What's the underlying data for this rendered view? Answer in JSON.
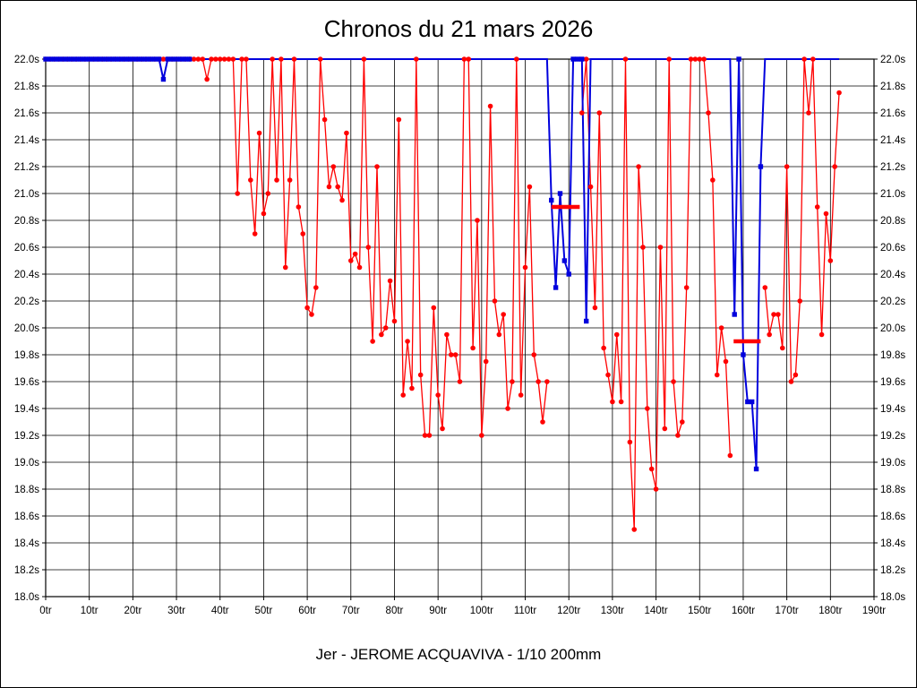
{
  "title": "Chronos du 21 mars 2026",
  "caption": "Jer - JEROME ACQUAVIVA - 1/10 200mm",
  "chart_data": {
    "type": "line",
    "title": "Chronos du 21 mars 2026",
    "subtitle": "Jer - JEROME ACQUAVIVA - 1/10 200mm",
    "grid": true,
    "background": "#ffffff",
    "grid_color": "#000000",
    "x_axis": {
      "unit": "tr",
      "min": 0,
      "max": 190,
      "tick_step": 10,
      "tick_labels": [
        "0tr",
        "10tr",
        "20tr",
        "30tr",
        "40tr",
        "50tr",
        "60tr",
        "70tr",
        "80tr",
        "90tr",
        "100tr",
        "110tr",
        "120tr",
        "130tr",
        "140tr",
        "150tr",
        "160tr",
        "170tr",
        "180tr",
        "190tr"
      ]
    },
    "y_axis": {
      "unit": "s",
      "min": 18.0,
      "max": 22.0,
      "tick_step": 0.2,
      "tick_labels": [
        "22.0s",
        "21.8s",
        "21.6s",
        "21.4s",
        "21.2s",
        "21.0s",
        "20.8s",
        "20.6s",
        "20.4s",
        "20.2s",
        "20.0s",
        "19.8s",
        "19.6s",
        "19.4s",
        "19.2s",
        "19.0s",
        "18.8s",
        "18.6s",
        "18.4s",
        "18.2s",
        "18.0s"
      ]
    },
    "series": [
      {
        "name": "red",
        "color": "#ff0000",
        "marker": "circle",
        "segments": [
          {
            "start_lap": 0,
            "values": [
              22,
              22,
              22,
              22,
              22,
              22,
              22,
              22,
              22,
              22,
              22,
              22,
              22,
              22,
              22,
              22,
              22,
              22,
              22,
              22,
              22,
              22,
              22,
              22,
              22,
              22,
              22,
              22,
              22,
              22,
              22,
              22,
              22,
              22,
              22,
              22,
              22,
              21.85,
              22,
              22,
              22,
              22,
              22,
              22,
              21,
              22,
              22,
              21.1,
              20.7,
              21.45,
              20.85,
              21,
              22,
              21.1,
              22,
              20.45,
              21.1,
              22,
              20.9,
              20.7,
              20.15,
              20.1,
              20.3,
              22,
              21.55,
              21.05,
              21.2,
              21.05,
              20.95,
              21.45,
              20.5,
              20.55,
              20.45,
              22,
              20.6,
              19.9,
              21.2,
              19.95,
              20,
              20.35,
              20.05,
              21.55,
              19.5,
              19.9,
              19.55,
              22,
              19.65,
              19.2,
              19.2,
              20.15,
              19.5,
              19.25,
              19.95,
              19.8,
              19.8,
              19.6,
              22,
              22,
              19.85,
              20.8,
              19.2,
              19.75,
              21.65,
              20.2,
              19.95,
              20.1,
              19.4,
              19.6,
              22,
              19.5,
              20.45,
              21.05,
              19.8,
              19.6,
              19.3,
              19.6
            ]
          },
          {
            "start_lap": 123,
            "values": [
              21.6,
              22,
              21.05,
              20.15,
              21.6,
              19.85,
              19.65,
              19.45,
              19.95,
              19.45,
              22,
              19.15,
              18.5,
              21.2,
              20.6,
              19.4,
              18.95,
              18.8,
              20.6,
              19.25,
              22,
              19.6,
              19.2,
              19.3,
              20.3,
              22,
              22,
              22,
              22,
              21.6,
              21.1,
              19.65,
              20,
              19.75,
              19.05
            ]
          },
          {
            "start_lap": 165,
            "values": [
              20.3,
              19.95,
              20.1,
              20.1,
              19.85,
              21.2,
              19.6,
              19.65,
              20.2,
              22,
              21.6,
              22,
              20.9,
              19.95,
              20.85,
              20.5,
              21.2,
              21.75
            ]
          }
        ]
      },
      {
        "name": "blue",
        "color": "#0000dd",
        "marker": "square",
        "start_lap": 0,
        "end_lap": 182,
        "base_value": 22,
        "overrides": {
          "27": 21.85,
          "116": 20.95,
          "117": 20.3,
          "118": 21,
          "119": 20.5,
          "120": 20.4,
          "124": 20.05,
          "158": 20.1,
          "160": 19.8,
          "161": 19.45,
          "162": 19.45,
          "163": 18.95,
          "164": 21.2
        },
        "marker_ranges": [
          [
            0,
            33
          ],
          [
            116,
            124
          ],
          [
            158,
            164
          ]
        ]
      }
    ],
    "mean_bars": [
      {
        "from": 116,
        "to": 122.5,
        "value": 20.9,
        "color": "#ff0000"
      },
      {
        "from": 157.8,
        "to": 164,
        "value": 19.9,
        "color": "#ff0000"
      }
    ]
  }
}
